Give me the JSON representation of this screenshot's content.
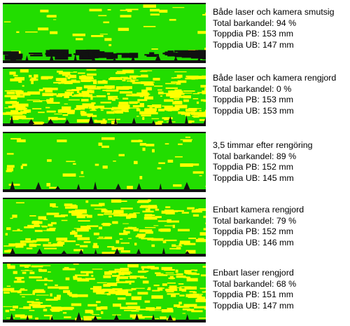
{
  "colors": {
    "bark": "#22dd00",
    "wood": "#ffff00",
    "background": "#111111"
  },
  "panels": [
    {
      "title": "Både laser och kamera smutsig",
      "bark_share": "Total barkandel: 94 %",
      "top_pb": "Toppdia PB: 153 mm",
      "top_ub": "Toppdia UB: 147 mm"
    },
    {
      "title": "Både laser och kamera rengjord",
      "bark_share": "Total barkandel: 0 %",
      "top_pb": "Toppdia PB: 153 mm",
      "top_ub": "Toppdia UB: 153 mm"
    },
    {
      "title": "3,5 timmar efter rengöring",
      "bark_share": "Total barkandel: 89 %",
      "top_pb": "Toppdia PB: 152 mm",
      "top_ub": "Toppdia UB: 145 mm"
    },
    {
      "title": "Enbart kamera rengjord",
      "bark_share": "Total barkandel: 79 %",
      "top_pb": "Toppdia PB: 152 mm",
      "top_ub": "Toppdia UB: 146 mm"
    },
    {
      "title": "Enbart laser rengjord",
      "bark_share": "Total barkandel: 68 %",
      "top_pb": "Toppdia PB: 151 mm",
      "top_ub": "Toppdia UB: 147 mm"
    }
  ]
}
